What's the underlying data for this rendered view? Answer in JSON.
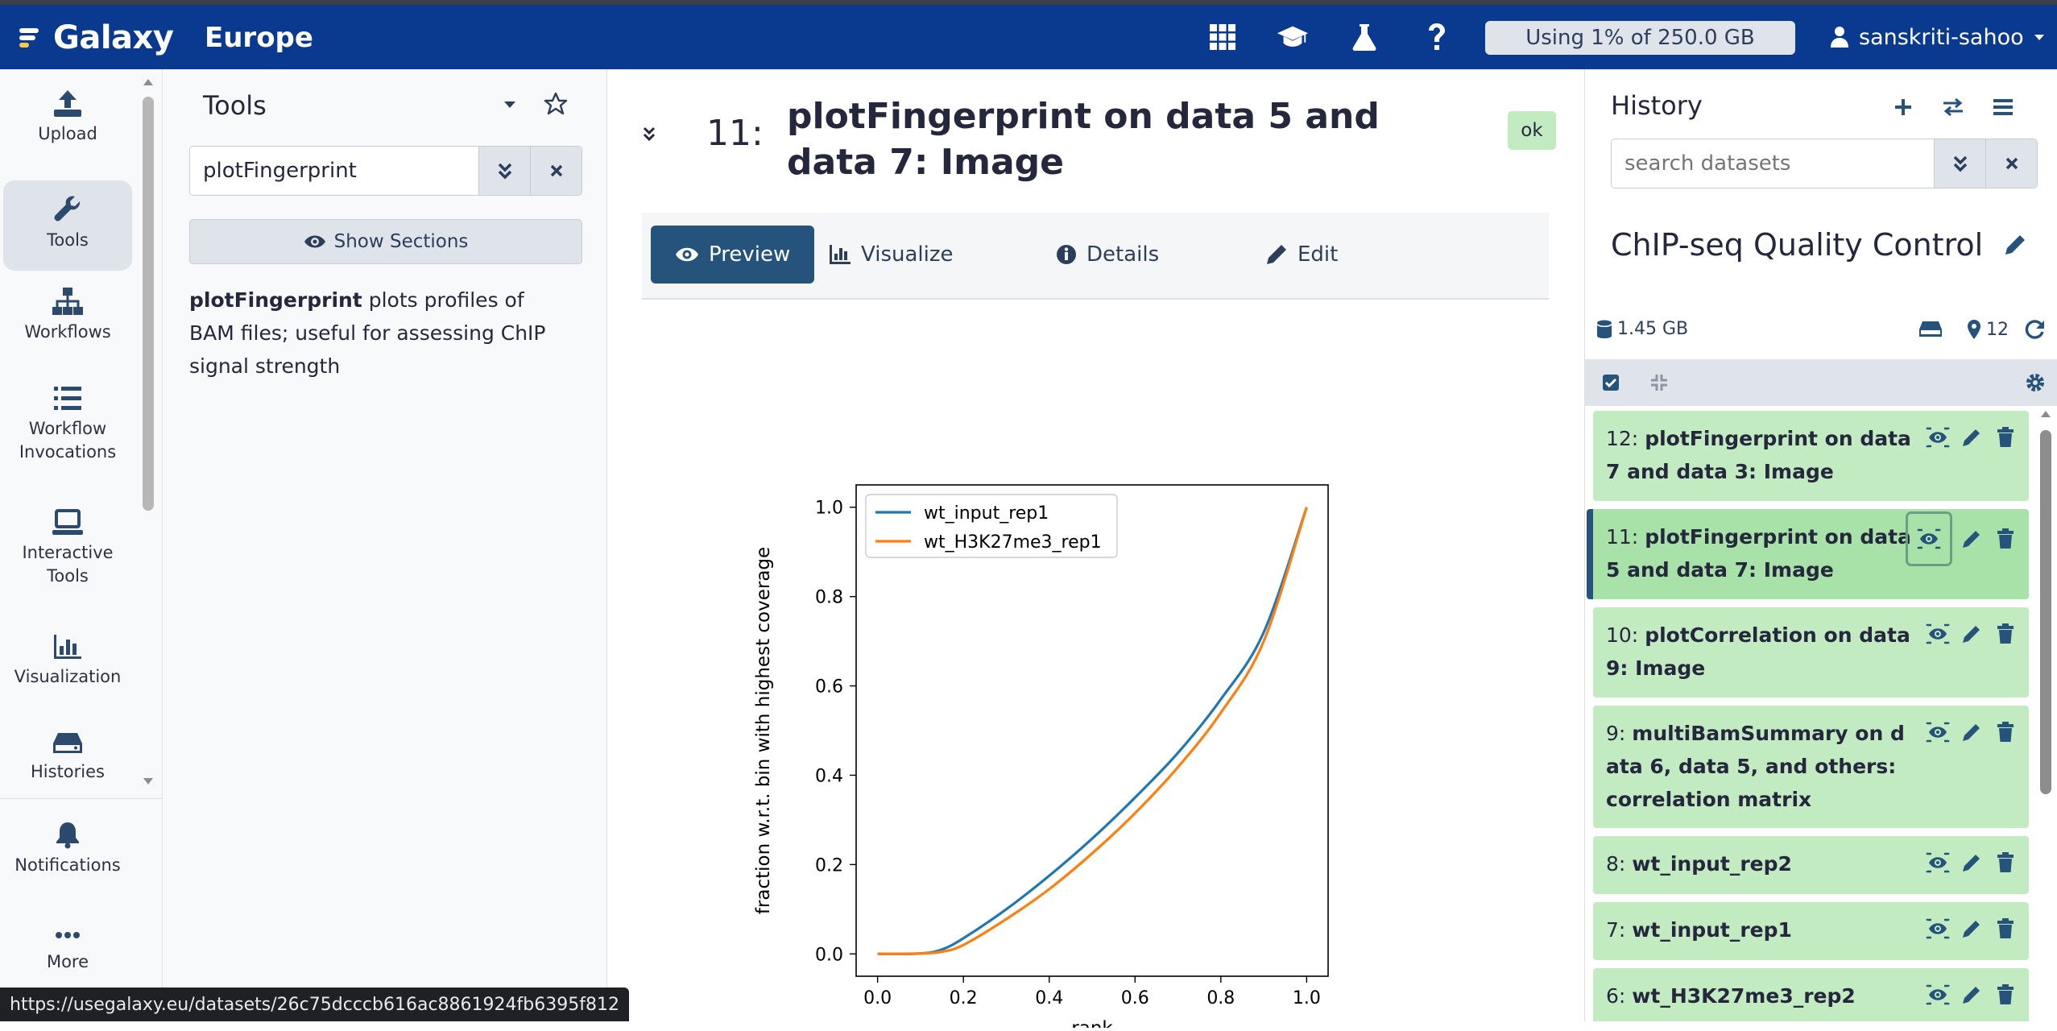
{
  "masthead": {
    "brand": "Galaxy",
    "subtitle": "Europe",
    "quota": "Using 1% of 250.0 GB",
    "username": "sanskriti-sahoo",
    "icons": [
      "apps-grid-icon",
      "graduation-cap-icon",
      "flask-icon",
      "help-icon",
      "user-icon"
    ]
  },
  "activity": {
    "items": [
      {
        "label": "Upload",
        "icon": "upload-icon"
      },
      {
        "label": "Tools",
        "icon": "wrench-icon"
      },
      {
        "label": "Workflows",
        "icon": "sitemap-icon"
      },
      {
        "label": "Workflow\nInvocations",
        "label1": "Workflow",
        "label2": "Invocations",
        "icon": "list-icon"
      },
      {
        "label": "Interactive Tools",
        "label1": "Interactive",
        "label2": "Tools",
        "icon": "laptop-icon"
      },
      {
        "label": "Visualization",
        "icon": "chart-bar-icon"
      },
      {
        "label": "Histories",
        "icon": "hdd-icon"
      },
      {
        "label": "Notifications",
        "icon": "bell-icon"
      },
      {
        "label": "More",
        "icon": "ellipsis-icon"
      }
    ]
  },
  "tools": {
    "title": "Tools",
    "search_value": "plotFingerprint",
    "show_sections": "Show Sections",
    "result_name": "plotFingerprint",
    "result_desc": " plots profiles of BAM files; useful for assessing ChIP signal strength"
  },
  "dataset": {
    "hid": "11:",
    "title": "plotFingerprint on data 5 and data 7: Image",
    "state": "ok",
    "tabs": [
      "Preview",
      "Visualize",
      "Details",
      "Edit"
    ]
  },
  "chart_data": {
    "type": "line",
    "xlabel": "rank",
    "ylabel": "fraction w.r.t. bin with highest coverage",
    "xlim": [
      -0.05,
      1.05
    ],
    "ylim": [
      -0.05,
      1.05
    ],
    "xticks": [
      "0.0",
      "0.2",
      "0.4",
      "0.6",
      "0.8",
      "1.0"
    ],
    "yticks": [
      "0.0",
      "0.2",
      "0.4",
      "0.6",
      "0.8",
      "1.0"
    ],
    "legend_position": "upper-left",
    "series": [
      {
        "name": "wt_input_rep1",
        "color": "#1f77b4",
        "x": [
          0.0,
          0.1,
          0.15,
          0.2,
          0.3,
          0.4,
          0.5,
          0.6,
          0.7,
          0.8,
          0.9,
          1.0
        ],
        "y": [
          0.0,
          0.001,
          0.01,
          0.035,
          0.1,
          0.175,
          0.258,
          0.35,
          0.45,
          0.57,
          0.72,
          1.0
        ]
      },
      {
        "name": "wt_H3K27me3_rep1",
        "color": "#ff7f0e",
        "x": [
          0.0,
          0.1,
          0.15,
          0.2,
          0.3,
          0.4,
          0.5,
          0.6,
          0.7,
          0.8,
          0.9,
          1.0
        ],
        "y": [
          0.0,
          0.001,
          0.005,
          0.02,
          0.078,
          0.145,
          0.225,
          0.315,
          0.418,
          0.54,
          0.7,
          1.0
        ]
      }
    ]
  },
  "history": {
    "title": "History",
    "search_placeholder": "search datasets",
    "name": "ChIP-seq Quality Control",
    "size": "1.45 GB",
    "count": "12",
    "items": [
      {
        "hid": "12:",
        "name": "plotFingerprint on data 7 and data 3: Image",
        "selected": false
      },
      {
        "hid": "11:",
        "name": "plotFingerprint on data 5 and data 7: Image",
        "selected": true
      },
      {
        "hid": "10:",
        "name": "plotCorrelation on data 9: Image",
        "selected": false
      },
      {
        "hid": "9:",
        "name": "multiBamSummary on data 6, data 5, and others: correlation matrix",
        "selected": false
      },
      {
        "hid": "8:",
        "name": "wt_input_rep2",
        "selected": false
      },
      {
        "hid": "7:",
        "name": "wt_input_rep1",
        "selected": false
      },
      {
        "hid": "6:",
        "name": "wt_H3K27me3_rep2",
        "selected": false
      }
    ]
  },
  "status_url": "https://usegalaxy.eu/datasets/26c75dcccb616ac8861924fb6395f812"
}
